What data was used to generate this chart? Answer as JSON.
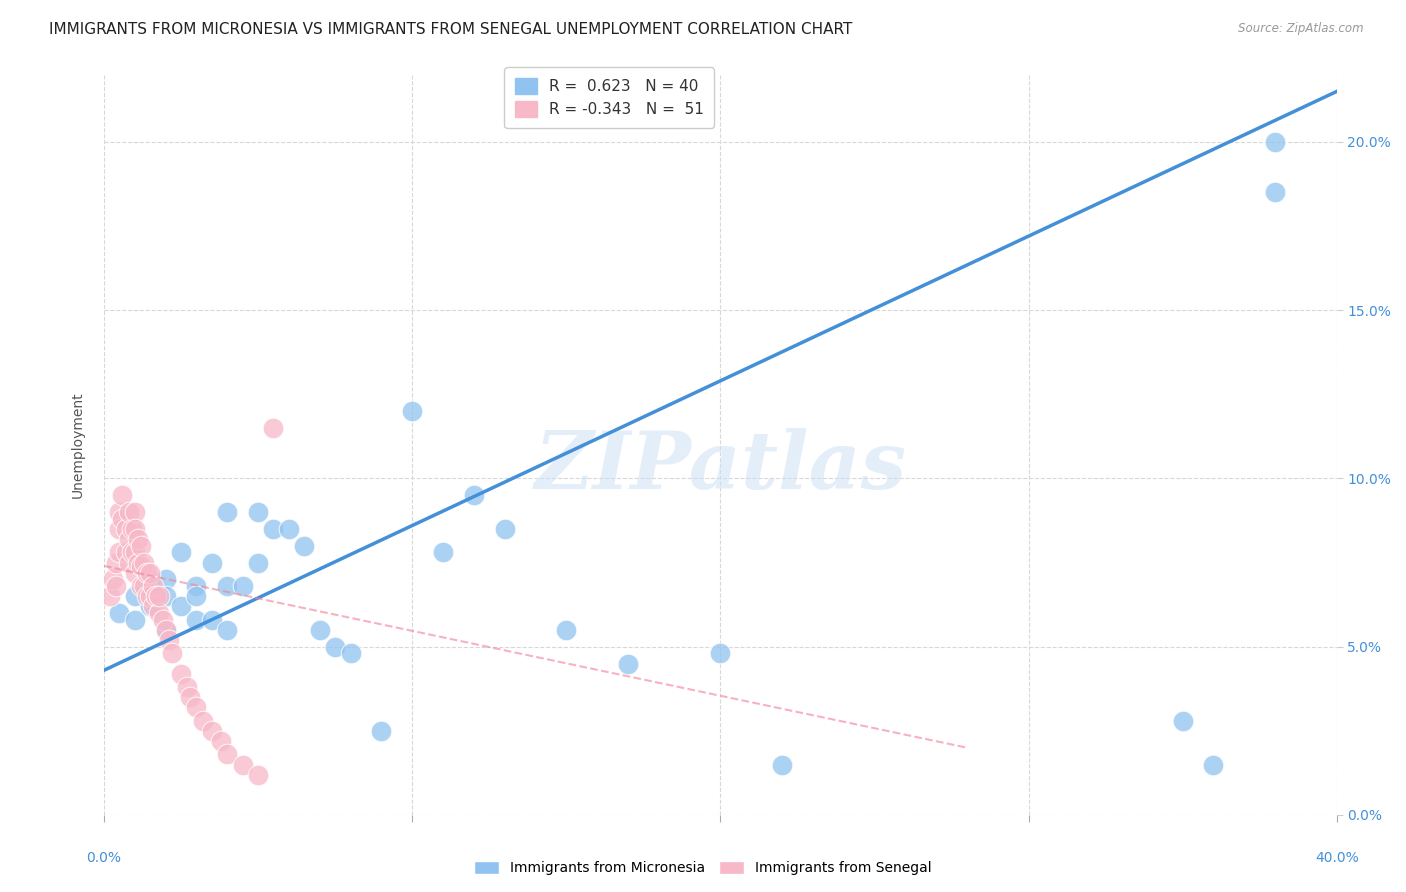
{
  "title": "IMMIGRANTS FROM MICRONESIA VS IMMIGRANTS FROM SENEGAL UNEMPLOYMENT CORRELATION CHART",
  "source": "Source: ZipAtlas.com",
  "ylabel": "Unemployment",
  "legend_blue": {
    "r": 0.623,
    "n": 40,
    "label": "Immigrants from Micronesia",
    "color": "#91c3f0"
  },
  "legend_pink": {
    "r": -0.343,
    "n": 51,
    "label": "Immigrants from Senegal",
    "color": "#f7b8c8"
  },
  "blue_line_color": "#4490d8",
  "pink_line_color": "#f08098",
  "watermark": "ZIPatlas",
  "xlim": [
    0.0,
    0.4
  ],
  "ylim": [
    0.0,
    0.22
  ],
  "blue_scatter_x": [
    0.005,
    0.01,
    0.01,
    0.015,
    0.015,
    0.02,
    0.02,
    0.02,
    0.025,
    0.025,
    0.03,
    0.03,
    0.03,
    0.035,
    0.035,
    0.04,
    0.04,
    0.04,
    0.045,
    0.05,
    0.05,
    0.055,
    0.06,
    0.065,
    0.07,
    0.075,
    0.08,
    0.09,
    0.1,
    0.11,
    0.12,
    0.13,
    0.15,
    0.17,
    0.2,
    0.22,
    0.35,
    0.36,
    0.38,
    0.38
  ],
  "blue_scatter_y": [
    0.06,
    0.065,
    0.058,
    0.068,
    0.062,
    0.07,
    0.065,
    0.055,
    0.078,
    0.062,
    0.068,
    0.065,
    0.058,
    0.075,
    0.058,
    0.09,
    0.068,
    0.055,
    0.068,
    0.09,
    0.075,
    0.085,
    0.085,
    0.08,
    0.055,
    0.05,
    0.048,
    0.025,
    0.12,
    0.078,
    0.095,
    0.085,
    0.055,
    0.045,
    0.048,
    0.015,
    0.028,
    0.015,
    0.2,
    0.185
  ],
  "pink_scatter_x": [
    0.002,
    0.003,
    0.004,
    0.004,
    0.005,
    0.005,
    0.005,
    0.006,
    0.006,
    0.007,
    0.007,
    0.008,
    0.008,
    0.008,
    0.009,
    0.009,
    0.01,
    0.01,
    0.01,
    0.01,
    0.011,
    0.011,
    0.012,
    0.012,
    0.012,
    0.013,
    0.013,
    0.014,
    0.014,
    0.015,
    0.015,
    0.016,
    0.016,
    0.017,
    0.018,
    0.018,
    0.019,
    0.02,
    0.021,
    0.022,
    0.025,
    0.027,
    0.028,
    0.03,
    0.032,
    0.035,
    0.038,
    0.04,
    0.045,
    0.05,
    0.055
  ],
  "pink_scatter_y": [
    0.065,
    0.07,
    0.075,
    0.068,
    0.09,
    0.085,
    0.078,
    0.095,
    0.088,
    0.085,
    0.078,
    0.09,
    0.082,
    0.075,
    0.085,
    0.078,
    0.09,
    0.085,
    0.078,
    0.072,
    0.082,
    0.075,
    0.08,
    0.074,
    0.068,
    0.075,
    0.068,
    0.072,
    0.065,
    0.072,
    0.065,
    0.068,
    0.062,
    0.065,
    0.06,
    0.065,
    0.058,
    0.055,
    0.052,
    0.048,
    0.042,
    0.038,
    0.035,
    0.032,
    0.028,
    0.025,
    0.022,
    0.018,
    0.015,
    0.012,
    0.115
  ],
  "blue_line_x": [
    0.0,
    0.4
  ],
  "blue_line_y": [
    0.043,
    0.215
  ],
  "pink_line_x": [
    0.0,
    0.28
  ],
  "pink_line_y": [
    0.074,
    0.02
  ],
  "background_color": "#ffffff",
  "grid_color": "#d8d8d8",
  "tick_fontsize": 10,
  "right_ytick_vals": [
    0.0,
    0.05,
    0.1,
    0.15,
    0.2
  ],
  "right_ytick_labels": [
    "0.0%",
    "5.0%",
    "10.0%",
    "15.0%",
    "20.0%"
  ],
  "xtick_edge_vals": [
    0.0,
    0.4
  ],
  "xtick_edge_labels": [
    "0.0%",
    "40.0%"
  ]
}
